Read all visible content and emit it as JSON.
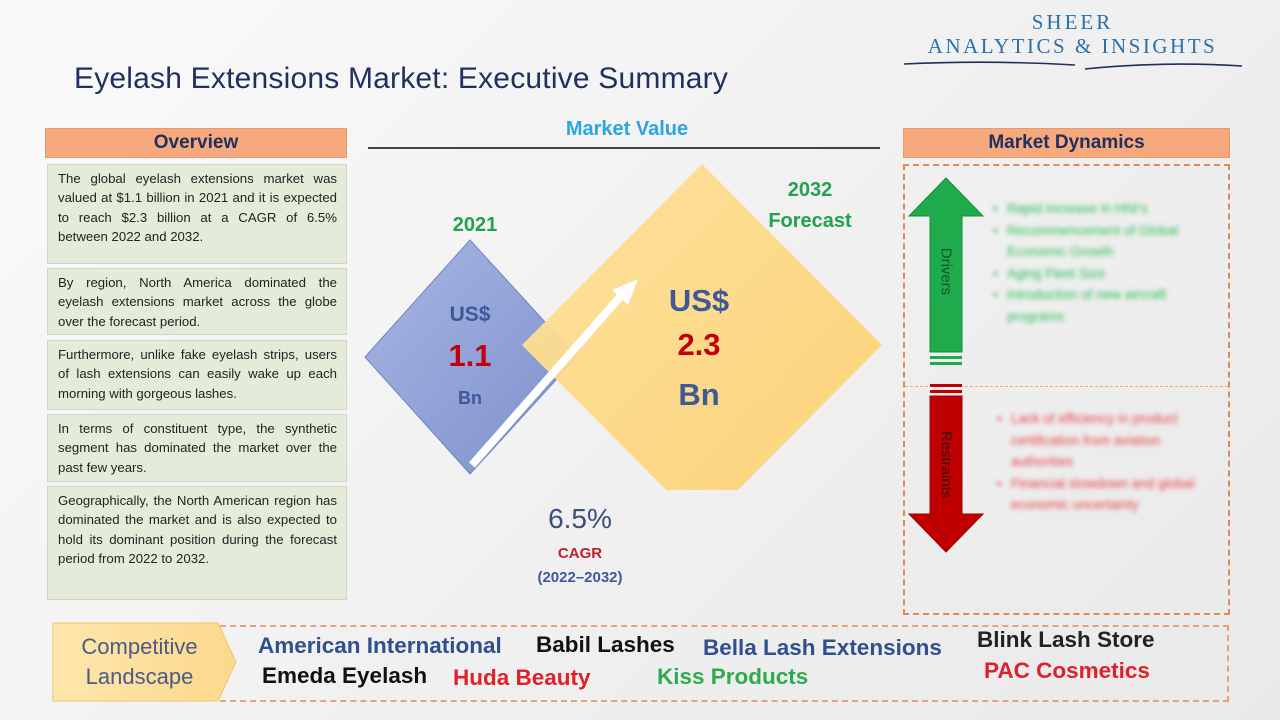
{
  "header": {
    "title": "Eyelash Extensions Market: Executive Summary",
    "logo_line1": "SHEER",
    "logo_line2": "ANALYTICS & INSIGHTS"
  },
  "overview": {
    "heading": "Overview",
    "paragraphs": [
      "The global eyelash extensions market was valued at $1.1 billion in 2021 and it is expected to reach $2.3 billion at a CAGR of 6.5% between 2022 and 2032.",
      "By region, North America dominated the eyelash extensions market across the globe over the forecast period.",
      "Furthermore, unlike fake eyelash strips, users of lash extensions can easily wake up each morning with gorgeous lashes.",
      "In terms of constituent type, the synthetic segment has dominated the market over the past few years.",
      "Geographically, the North American region has dominated the market and is also expected to hold its dominant position during the forecast period from 2022 to 2032."
    ]
  },
  "market_value": {
    "heading": "Market Value",
    "year_2021": "2021",
    "year_2032_line1": "2032",
    "year_2032_line2": "Forecast",
    "v2021_currency": "US$",
    "v2021_value": "1.1",
    "v2021_unit": "Bn",
    "v2032_currency": "US$",
    "v2032_value": "2.3",
    "v2032_unit": "Bn",
    "cagr_value": "6.5%",
    "cagr_label": "CAGR",
    "cagr_years": "(2022–2032)"
  },
  "market_dynamics": {
    "heading": "Market Dynamics",
    "drivers_label": "Drivers",
    "restraints_label": "Restraints",
    "drivers": [
      "Rapid increase in HNI's",
      "Recommencement of Global Economic Growth",
      "Aging Fleet Size",
      "Introduction of new aircraft programs"
    ],
    "restraints": [
      "Lack of efficiency in product certification from aviation authorities",
      "Financial slowdown and global economic uncertainty"
    ]
  },
  "competitive_landscape": {
    "label_line1": "Competitive",
    "label_line2": "Landscape",
    "companies": [
      {
        "name": "American International",
        "color": "#2f4f8f"
      },
      {
        "name": "Babil Lashes",
        "color": "#111111"
      },
      {
        "name": "Bella Lash Extensions",
        "color": "#2f4f8f"
      },
      {
        "name": "Blink Lash Store",
        "color": "#222222"
      },
      {
        "name": "Emeda Eyelash",
        "color": "#111111"
      },
      {
        "name": "Huda Beauty",
        "color": "#e0202a"
      },
      {
        "name": "Kiss Products",
        "color": "#2eaa4f"
      },
      {
        "name": "PAC Cosmetics",
        "color": "#e0202a"
      }
    ]
  },
  "colors": {
    "section_header_bg": "#f7a97e",
    "overview_box_bg": "#e4ecd9",
    "diamond_2021": "#8d9fd6",
    "diamond_2032": "#fdd77f",
    "drivers_arrow": "#1faa4c",
    "restraints_arrow": "#c00000"
  }
}
